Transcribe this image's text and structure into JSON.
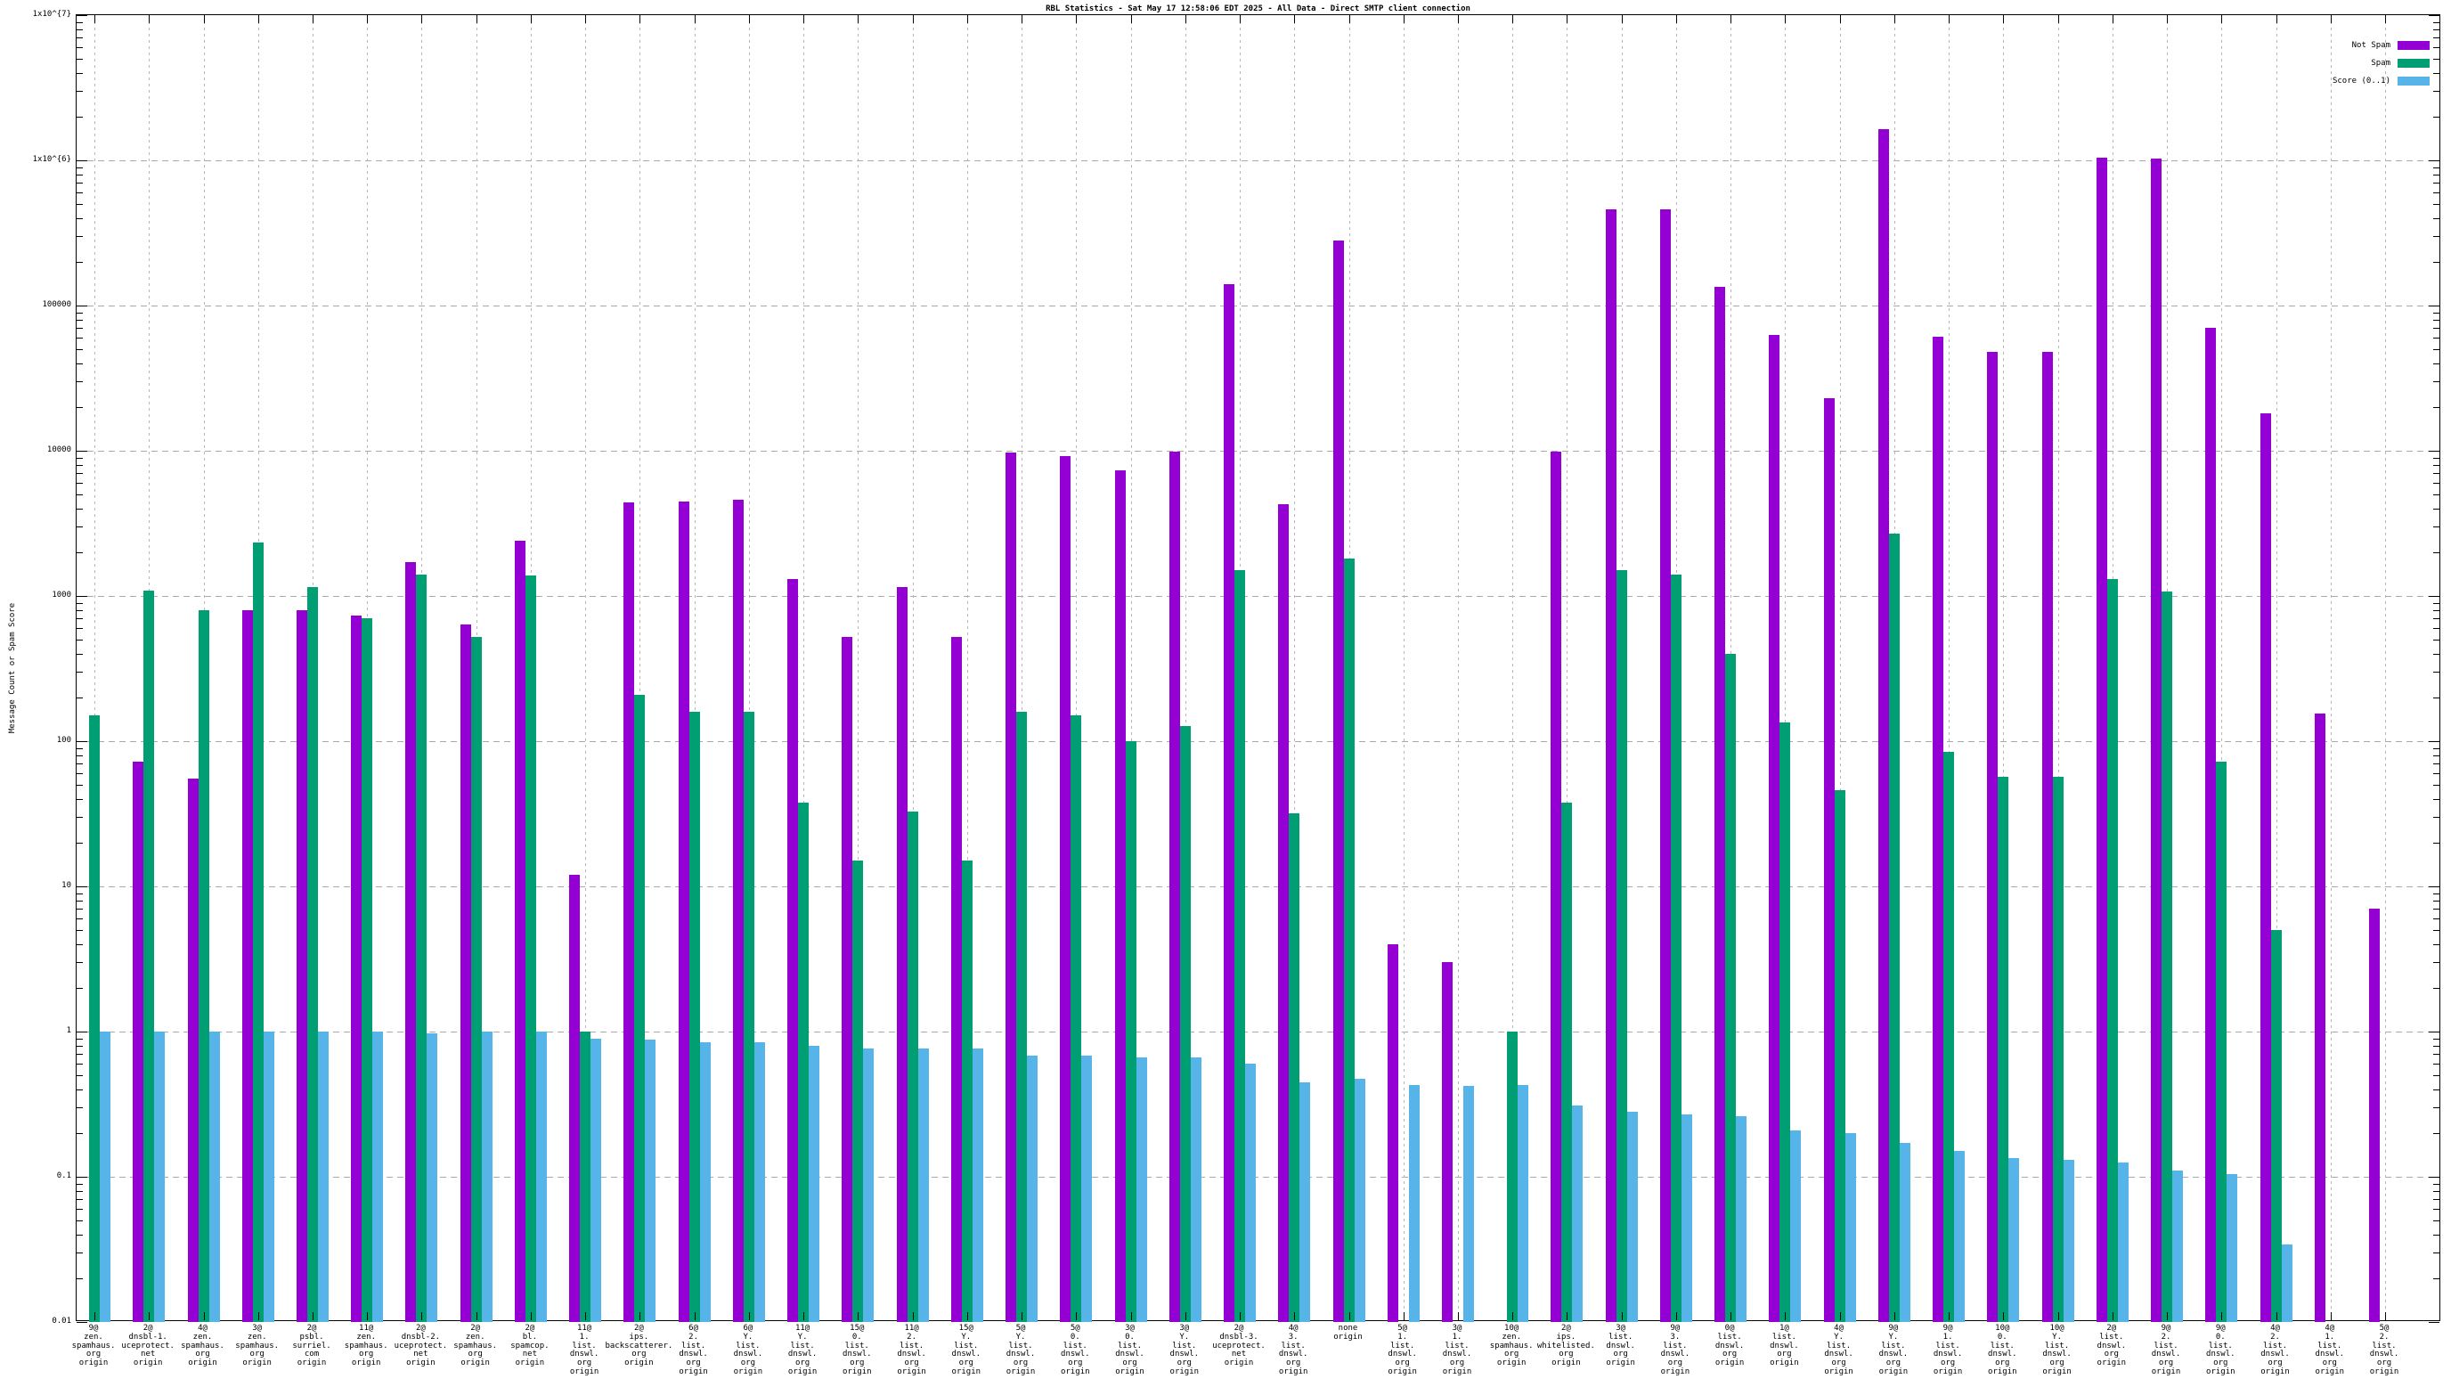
{
  "chart_data": {
    "type": "bar",
    "title": "RBL Statistics - Sat May 17 12:58:06 EDT 2025 - All Data - Direct SMTP client connection",
    "ylabel": "Message Count or Spam Score",
    "xlabel": "",
    "y_scale": "log",
    "ylim": [
      0.01,
      10000000
    ],
    "grid": true,
    "legend_position": "top-right",
    "background_color": "#ffffff",
    "grid_color": "#aaaaaa",
    "y_ticks": [
      {
        "label": "1x10^{7}",
        "value": 10000000
      },
      {
        "label": "1x10^{6}",
        "value": 1000000
      },
      {
        "label": "100000",
        "value": 100000
      },
      {
        "label": "10000",
        "value": 10000
      },
      {
        "label": "1000",
        "value": 1000
      },
      {
        "label": "100",
        "value": 100
      },
      {
        "label": "10",
        "value": 10
      },
      {
        "label": "1",
        "value": 1
      },
      {
        "label": "0.1",
        "value": 0.1
      },
      {
        "label": "0.01",
        "value": 0.01
      }
    ],
    "categories": [
      [
        "9@",
        "zen.",
        "spamhaus.",
        "org",
        "origin"
      ],
      [
        "2@",
        "dnsbl-1.",
        "uceprotect.",
        "net",
        "origin"
      ],
      [
        "4@",
        "zen.",
        "spamhaus.",
        "org",
        "origin"
      ],
      [
        "3@",
        "zen.",
        "spamhaus.",
        "org",
        "origin"
      ],
      [
        "2@",
        "psbl.",
        "surriel.",
        "com",
        "origin"
      ],
      [
        "11@",
        "zen.",
        "spamhaus.",
        "org",
        "origin"
      ],
      [
        "2@",
        "dnsbl-2.",
        "uceprotect.",
        "net",
        "origin"
      ],
      [
        "2@",
        "zen.",
        "spamhaus.",
        "org",
        "origin"
      ],
      [
        "2@",
        "bl.",
        "spamcop.",
        "net",
        "origin"
      ],
      [
        "11@",
        "1.",
        "list.",
        "dnswl.",
        "org",
        "origin"
      ],
      [
        "2@",
        "ips.",
        "backscatterer.",
        "org",
        "origin"
      ],
      [
        "6@",
        "2.",
        "list.",
        "dnswl.",
        "org",
        "origin"
      ],
      [
        "6@",
        "Y.",
        "list.",
        "dnswl.",
        "org",
        "origin"
      ],
      [
        "11@",
        "Y.",
        "list.",
        "dnswl.",
        "org",
        "origin"
      ],
      [
        "15@",
        "0.",
        "list.",
        "dnswl.",
        "org",
        "origin"
      ],
      [
        "11@",
        "2.",
        "list.",
        "dnswl.",
        "org",
        "origin"
      ],
      [
        "15@",
        "Y.",
        "list.",
        "dnswl.",
        "org",
        "origin"
      ],
      [
        "5@",
        "Y.",
        "list.",
        "dnswl.",
        "org",
        "origin"
      ],
      [
        "5@",
        "0.",
        "list.",
        "dnswl.",
        "org",
        "origin"
      ],
      [
        "3@",
        "0.",
        "list.",
        "dnswl.",
        "org",
        "origin"
      ],
      [
        "3@",
        "Y.",
        "list.",
        "dnswl.",
        "org",
        "origin"
      ],
      [
        "2@",
        "dnsbl-3.",
        "uceprotect.",
        "net",
        "origin"
      ],
      [
        "4@",
        "3.",
        "list.",
        "dnswl.",
        "org",
        "origin"
      ],
      [
        "none",
        "origin"
      ],
      [
        "5@",
        "1.",
        "list.",
        "dnswl.",
        "org",
        "origin"
      ],
      [
        "3@",
        "1.",
        "list.",
        "dnswl.",
        "org",
        "origin"
      ],
      [
        "10@",
        "zen.",
        "spamhaus.",
        "org",
        "origin"
      ],
      [
        "2@",
        "ips.",
        "whitelisted.",
        "org",
        "origin"
      ],
      [
        "3@",
        "list.",
        "dnswl.",
        "org",
        "origin"
      ],
      [
        "9@",
        "3.",
        "list.",
        "dnswl.",
        "org",
        "origin"
      ],
      [
        "0@",
        "list.",
        "dnswl.",
        "org",
        "origin"
      ],
      [
        "1@",
        "list.",
        "dnswl.",
        "org",
        "origin"
      ],
      [
        "4@",
        "Y.",
        "list.",
        "dnswl.",
        "org",
        "origin"
      ],
      [
        "9@",
        "Y.",
        "list.",
        "dnswl.",
        "org",
        "origin"
      ],
      [
        "9@",
        "1.",
        "list.",
        "dnswl.",
        "org",
        "origin"
      ],
      [
        "10@",
        "0.",
        "list.",
        "dnswl.",
        "org",
        "origin"
      ],
      [
        "10@",
        "Y.",
        "list.",
        "dnswl.",
        "org",
        "origin"
      ],
      [
        "2@",
        "list.",
        "dnswl.",
        "org",
        "origin"
      ],
      [
        "9@",
        "2.",
        "list.",
        "dnswl.",
        "org",
        "origin"
      ],
      [
        "9@",
        "0.",
        "list.",
        "dnswl.",
        "org",
        "origin"
      ],
      [
        "4@",
        "2.",
        "list.",
        "dnswl.",
        "org",
        "origin"
      ],
      [
        "4@",
        "1.",
        "list.",
        "dnswl.",
        "org",
        "origin"
      ],
      [
        "5@",
        "2.",
        "list.",
        "dnswl.",
        "org",
        "origin"
      ]
    ],
    "series": [
      {
        "name": "Not Spam",
        "color": "#9400d3",
        "values": [
          0,
          72,
          55,
          800,
          800,
          730,
          1700,
          640,
          2400,
          12,
          4400,
          4500,
          4600,
          1300,
          520,
          1150,
          520,
          9700,
          9200,
          7300,
          9800,
          140000,
          4300,
          280000,
          4,
          3,
          0,
          9800,
          460000,
          460000,
          135000,
          63000,
          23000,
          1650000,
          61000,
          48000,
          48000,
          1050000,
          1030000,
          70000,
          18000,
          155,
          7
        ]
      },
      {
        "name": "Spam",
        "color": "#009e73",
        "values": [
          150,
          1090,
          800,
          2350,
          1150,
          700,
          1400,
          520,
          1380,
          1,
          210,
          160,
          160,
          38,
          15,
          33,
          15,
          160,
          150,
          100,
          128,
          1500,
          32,
          1800,
          0,
          0,
          1,
          38,
          1500,
          1400,
          400,
          135,
          46,
          2700,
          85,
          57,
          57,
          1300,
          1070,
          72,
          5,
          0,
          0
        ]
      },
      {
        "name": "Score (0..1)",
        "color": "#56b4e9",
        "values": [
          1.0,
          1.0,
          1.0,
          1.0,
          1.0,
          1.0,
          0.97,
          1.0,
          1.0,
          0.9,
          0.88,
          0.85,
          0.85,
          0.8,
          0.76,
          0.76,
          0.76,
          0.68,
          0.68,
          0.66,
          0.66,
          0.6,
          0.45,
          0.47,
          0.43,
          0.42,
          0.43,
          0.31,
          0.28,
          0.27,
          0.26,
          0.21,
          0.2,
          0.17,
          0.15,
          0.135,
          0.13,
          0.125,
          0.11,
          0.105,
          0.034,
          0,
          0
        ]
      }
    ]
  }
}
